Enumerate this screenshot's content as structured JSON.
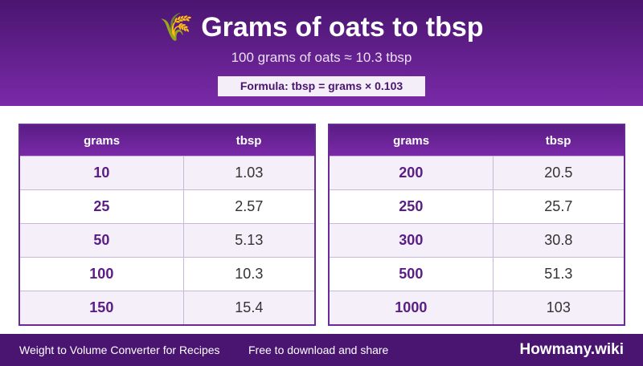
{
  "header": {
    "icon": "🌾",
    "title": "Grams of oats to tbsp",
    "subtitle": "100 grams of oats ≈ 10.3 tbsp",
    "formula": "Formula: tbsp = grams × 0.103"
  },
  "tables": [
    {
      "columns": [
        "grams",
        "tbsp"
      ],
      "rows": [
        [
          "10",
          "1.03"
        ],
        [
          "25",
          "2.57"
        ],
        [
          "50",
          "5.13"
        ],
        [
          "100",
          "10.3"
        ],
        [
          "150",
          "15.4"
        ]
      ]
    },
    {
      "columns": [
        "grams",
        "tbsp"
      ],
      "rows": [
        [
          "200",
          "20.5"
        ],
        [
          "250",
          "25.7"
        ],
        [
          "300",
          "30.8"
        ],
        [
          "500",
          "51.3"
        ],
        [
          "1000",
          "103"
        ]
      ]
    }
  ],
  "footer": {
    "left": "Weight to Volume Converter for Recipes",
    "middle": "Free to download and share",
    "brand": "Howmany.wiki"
  }
}
